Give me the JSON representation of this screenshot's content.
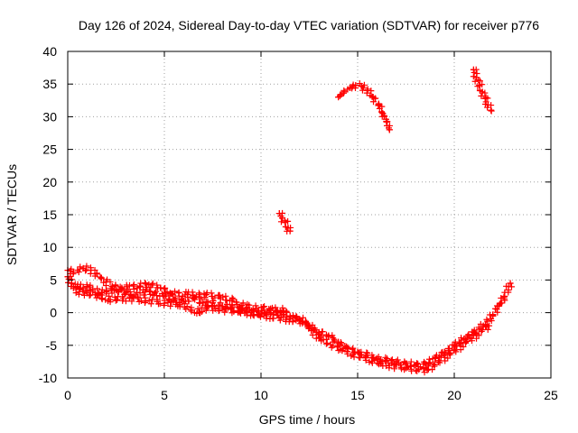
{
  "chart_data": {
    "type": "scatter",
    "title": "Day 126 of 2024, Sidereal Day-to-day VTEC variation (SDTVAR) for receiver p776",
    "xlabel": "GPS time / hours",
    "ylabel": "SDTVAR / TECUs",
    "xlim": [
      0,
      25
    ],
    "ylim": [
      -10,
      40
    ],
    "xticks": [
      0,
      5,
      10,
      15,
      20,
      25
    ],
    "yticks": [
      -10,
      -5,
      0,
      5,
      10,
      15,
      20,
      25,
      30,
      35,
      40
    ],
    "grid": true,
    "marker": "+",
    "color": "#ff0000",
    "series": [
      {
        "name": "main-band",
        "points": [
          [
            0.0,
            5.5
          ],
          [
            0.2,
            4.5
          ],
          [
            0.5,
            4.0
          ],
          [
            0.8,
            3.8
          ],
          [
            1.0,
            4.0
          ],
          [
            1.3,
            3.6
          ],
          [
            1.6,
            3.0
          ],
          [
            2.0,
            3.2
          ],
          [
            2.5,
            3.5
          ],
          [
            3.0,
            3.0
          ],
          [
            3.5,
            2.7
          ],
          [
            4.0,
            3.2
          ],
          [
            4.5,
            3.0
          ],
          [
            5.0,
            2.5
          ],
          [
            5.5,
            2.0
          ],
          [
            6.0,
            1.8
          ],
          [
            6.5,
            2.2
          ],
          [
            7.0,
            1.5
          ],
          [
            7.5,
            1.5
          ],
          [
            8.0,
            1.0
          ],
          [
            8.5,
            0.8
          ],
          [
            9.0,
            0.5
          ],
          [
            9.5,
            0.0
          ],
          [
            10.0,
            -0.2
          ],
          [
            10.5,
            0.0
          ],
          [
            11.0,
            0.0
          ],
          [
            11.5,
            -0.5
          ],
          [
            12.0,
            -1.0
          ],
          [
            12.5,
            -2.0
          ],
          [
            13.0,
            -3.0
          ],
          [
            13.5,
            -3.5
          ],
          [
            14.0,
            -4.5
          ],
          [
            14.5,
            -5.5
          ],
          [
            15.0,
            -6.0
          ],
          [
            15.5,
            -6.5
          ],
          [
            16.0,
            -7.0
          ],
          [
            16.5,
            -7.3
          ],
          [
            17.0,
            -7.5
          ],
          [
            17.5,
            -7.8
          ],
          [
            18.0,
            -8.0
          ],
          [
            18.5,
            -7.8
          ],
          [
            19.0,
            -7.0
          ],
          [
            19.5,
            -6.0
          ],
          [
            20.0,
            -5.0
          ],
          [
            20.5,
            -4.0
          ],
          [
            21.0,
            -3.0
          ],
          [
            21.5,
            -2.0
          ],
          [
            22.0,
            -0.5
          ],
          [
            22.3,
            1.0
          ],
          [
            22.6,
            2.5
          ],
          [
            22.9,
            4.5
          ]
        ]
      },
      {
        "name": "upper-band",
        "points": [
          [
            0.0,
            6.5
          ],
          [
            0.3,
            6.2
          ],
          [
            0.8,
            6.8
          ],
          [
            1.2,
            6.5
          ],
          [
            2.3,
            4.0
          ],
          [
            2.8,
            3.8
          ],
          [
            4.2,
            4.3
          ],
          [
            4.8,
            3.8
          ],
          [
            5.3,
            3.0
          ],
          [
            6.2,
            2.8
          ],
          [
            7.8,
            2.6
          ],
          [
            8.5,
            1.8
          ],
          [
            9.3,
            0.8
          ],
          [
            10.5,
            0.6
          ],
          [
            11.3,
            0.2
          ]
        ]
      },
      {
        "name": "lower-band",
        "points": [
          [
            0.3,
            3.8
          ],
          [
            0.6,
            3.2
          ],
          [
            1.0,
            3.0
          ],
          [
            2.2,
            2.0
          ],
          [
            3.2,
            2.2
          ],
          [
            5.8,
            1.2
          ],
          [
            6.8,
            0.0
          ],
          [
            7.2,
            0.8
          ],
          [
            8.8,
            0.2
          ],
          [
            12.3,
            -1.5
          ],
          [
            13.0,
            -3.8
          ],
          [
            14.2,
            -5.8
          ],
          [
            16.2,
            -7.8
          ],
          [
            17.5,
            -8.5
          ],
          [
            18.6,
            -8.8
          ],
          [
            21.8,
            -2.0
          ]
        ]
      },
      {
        "name": "arc-15h",
        "points": [
          [
            14.0,
            33.0
          ],
          [
            14.3,
            33.8
          ],
          [
            14.6,
            34.4
          ],
          [
            14.9,
            34.8
          ],
          [
            15.2,
            34.7
          ],
          [
            15.5,
            34.0
          ],
          [
            15.8,
            33.0
          ],
          [
            16.1,
            31.8
          ],
          [
            16.3,
            30.5
          ],
          [
            16.5,
            29.2
          ],
          [
            16.65,
            28.0
          ]
        ]
      },
      {
        "name": "arc-21h",
        "points": [
          [
            21.0,
            37.2
          ],
          [
            21.15,
            36.0
          ],
          [
            21.3,
            34.8
          ],
          [
            21.45,
            33.8
          ],
          [
            21.6,
            32.8
          ],
          [
            21.75,
            31.8
          ],
          [
            21.9,
            31.0
          ]
        ]
      },
      {
        "name": "arc-11h",
        "points": [
          [
            10.95,
            15.2
          ],
          [
            11.1,
            14.5
          ],
          [
            11.25,
            13.8
          ],
          [
            11.4,
            13.0
          ],
          [
            11.5,
            12.5
          ]
        ]
      }
    ]
  }
}
